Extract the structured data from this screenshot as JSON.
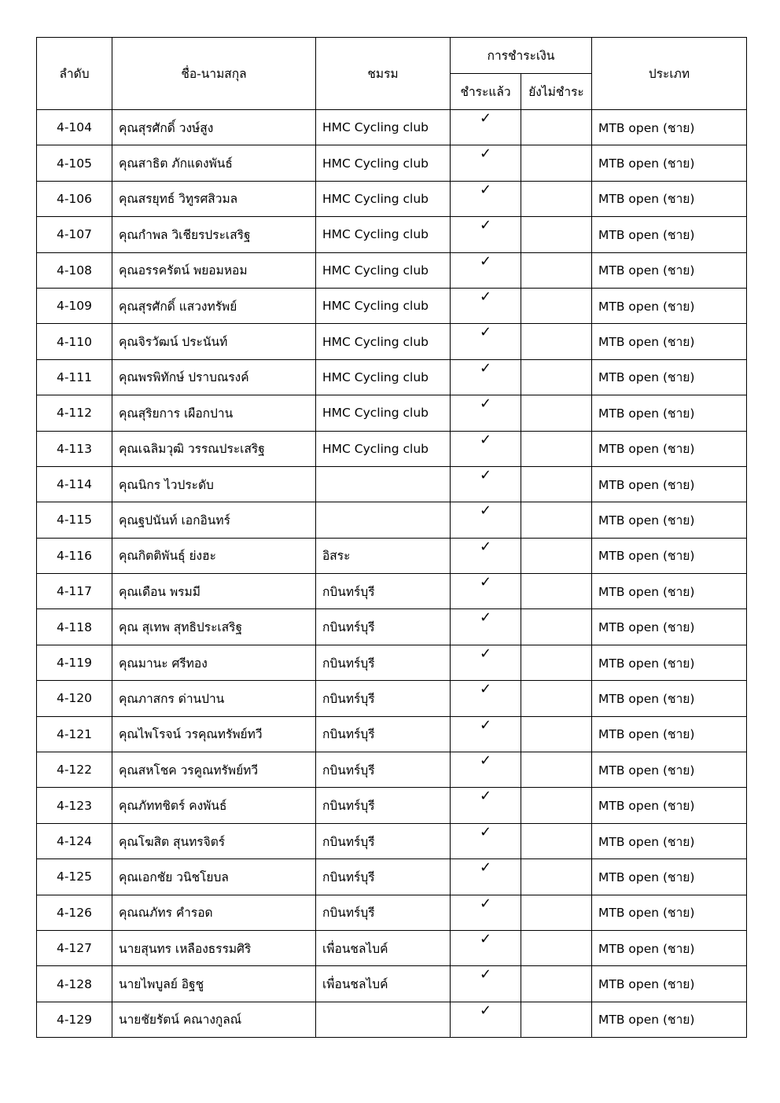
{
  "headers": {
    "order": "ลำดับ",
    "name": "ชื่อ-นามสกุล",
    "club": "ชมรม",
    "payment": "การชำระเงิน",
    "paid": "ชำระแล้ว",
    "unpaid": "ยังไม่ชำระ",
    "category": "ประเภท"
  },
  "check_icon": "✓",
  "rows": [
    {
      "no": "4-104",
      "name": "คุณสุรศักดิ์ วงษ์สูง",
      "club": "HMC Cycling club",
      "paid": true,
      "category": "MTB open (ชาย)"
    },
    {
      "no": "4-105",
      "name": "คุณสาธิต ภักแดงพันธ์",
      "club": "HMC Cycling club",
      "paid": true,
      "category": "MTB open (ชาย)"
    },
    {
      "no": "4-106",
      "name": "คุณสรยุทธ์ วิทูรศสิวมล",
      "club": "HMC Cycling club",
      "paid": true,
      "category": "MTB open (ชาย)"
    },
    {
      "no": "4-107",
      "name": "คุณกำพล วิเชียรประเสริฐ",
      "club": "HMC Cycling club",
      "paid": true,
      "category": "MTB open (ชาย)"
    },
    {
      "no": "4-108",
      "name": "คุณอรรครัตน์ พยอมหอม",
      "club": "HMC Cycling club",
      "paid": true,
      "category": "MTB open (ชาย)"
    },
    {
      "no": "4-109",
      "name": "คุณสุรศักดิ์ แสวงทรัพย์",
      "club": "HMC Cycling club",
      "paid": true,
      "category": "MTB open (ชาย)"
    },
    {
      "no": "4-110",
      "name": "คุณจิรวัฒน์ ประนันท์",
      "club": "HMC Cycling club",
      "paid": true,
      "category": "MTB open (ชาย)"
    },
    {
      "no": "4-111",
      "name": "คุณพรพิทักษ์ ปราบณรงค์",
      "club": "HMC Cycling club",
      "paid": true,
      "category": "MTB open (ชาย)"
    },
    {
      "no": "4-112",
      "name": "คุณสุริยการ เผือกปาน",
      "club": "HMC Cycling club",
      "paid": true,
      "category": "MTB open (ชาย)"
    },
    {
      "no": "4-113",
      "name": "คุณเฉลิมวุฒิ วรรณประเสริฐ",
      "club": "HMC Cycling club",
      "paid": true,
      "category": "MTB open (ชาย)"
    },
    {
      "no": "4-114",
      "name": "คุณนิกร ไวประดับ",
      "club": "",
      "paid": true,
      "category": "MTB open (ชาย)"
    },
    {
      "no": "4-115",
      "name": "คุณฐปนันท์ เอกอินทร์",
      "club": "",
      "paid": true,
      "category": "MTB open (ชาย)"
    },
    {
      "no": "4-116",
      "name": "คุณกิตติพันธุ์  ย่งฮะ",
      "club": "อิสระ",
      "paid": true,
      "category": "MTB open (ชาย)"
    },
    {
      "no": "4-117",
      "name": "คุณเดือน พรมมี",
      "club": "กบินทร์บุรี",
      "paid": true,
      "category": "MTB open (ชาย)"
    },
    {
      "no": "4-118",
      "name": "คุณ สุเทพ สุทธิประเสริฐ",
      "club": "กบินทร์บุรี",
      "paid": true,
      "category": "MTB open (ชาย)"
    },
    {
      "no": "4-119",
      "name": "คุณมานะ ศรีทอง",
      "club": "กบินทร์บุรี",
      "paid": true,
      "category": "MTB open (ชาย)"
    },
    {
      "no": "4-120",
      "name": "คุณภาสกร ด่านปาน",
      "club": "กบินทร์บุรี",
      "paid": true,
      "category": "MTB open (ชาย)"
    },
    {
      "no": "4-121",
      "name": "คุณไพโรจน์ วรคุณทรัพย์ทวี",
      "club": "กบินทร์บุรี",
      "paid": true,
      "category": "MTB open (ชาย)"
    },
    {
      "no": "4-122",
      "name": "คุณสหโชค วรคูณทรัพย์ทวี",
      "club": "กบินทร์บุรี",
      "paid": true,
      "category": "MTB open (ชาย)"
    },
    {
      "no": "4-123",
      "name": "คุณภัททชิตร์ คงพันธ์",
      "club": "กบินทร์บุรี",
      "paid": true,
      "category": "MTB open (ชาย)"
    },
    {
      "no": "4-124",
      "name": "คุณโฆสิต สุนทรจิตร์",
      "club": "กบินทร์บุรี",
      "paid": true,
      "category": "MTB open (ชาย)"
    },
    {
      "no": "4-125",
      "name": "คุณเอกชัย วนิชโยบล",
      "club": "กบินทร์บุรี",
      "paid": true,
      "category": "MTB open (ชาย)"
    },
    {
      "no": "4-126",
      "name": "คุณณภัทร คำรอด",
      "club": "กบินทร์บุรี",
      "paid": true,
      "category": "MTB open (ชาย)"
    },
    {
      "no": "4-127",
      "name": "นายสุนทร  เหลืองธรรมศิริ",
      "club": "เพื่อนชลไบค์",
      "paid": true,
      "category": "MTB open (ชาย)"
    },
    {
      "no": "4-128",
      "name": "นายไพบูลย์  อิฐชู",
      "club": "เพื่อนชลไบค์",
      "paid": true,
      "category": "MTB open (ชาย)"
    },
    {
      "no": "4-129",
      "name": "นายชัยรัตน์  คณางกูลณ์",
      "club": "",
      "paid": true,
      "category": "MTB open (ชาย)"
    }
  ]
}
